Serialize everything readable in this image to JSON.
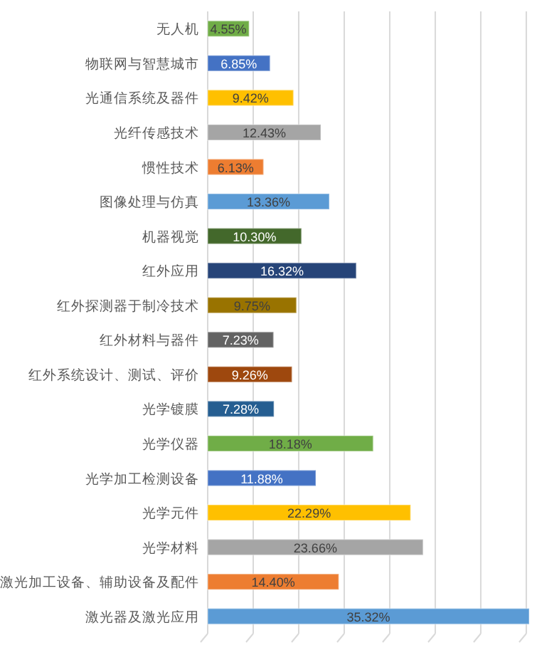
{
  "chart_data": {
    "type": "bar",
    "orientation": "horizontal",
    "categories": [
      "无人机",
      "物联网与智慧城市",
      "光通信系统及器件",
      "光纤传感技术",
      "惯性技术",
      "图像处理与仿真",
      "机器视觉",
      "红外应用",
      "红外探测器于制冷技术",
      "红外材料与器件",
      "红外系统设计、测试、评价",
      "光学镀膜",
      "光学仪器",
      "光学加工检测设备",
      "光学元件",
      "光学材料",
      "激光加工设备、辅助设备及配件",
      "激光器及激光应用"
    ],
    "values": [
      4.55,
      6.85,
      9.42,
      12.43,
      6.13,
      13.36,
      10.3,
      16.32,
      9.75,
      7.23,
      9.26,
      7.28,
      18.18,
      11.88,
      22.29,
      23.66,
      14.4,
      35.32
    ],
    "value_labels": [
      "4.55%",
      "6.85%",
      "9.42%",
      "12.43%",
      "6.13%",
      "13.36%",
      "10.30%",
      "16.32%",
      "9.75%",
      "7.23%",
      "9.26%",
      "7.28%",
      "18.18%",
      "11.88%",
      "22.29%",
      "23.66%",
      "14.40%",
      "35.32%"
    ],
    "colors": [
      "#70ad47",
      "#4472c4",
      "#ffc000",
      "#a5a5a5",
      "#ed7d31",
      "#5b9bd5",
      "#43682b",
      "#264478",
      "#997300",
      "#636363",
      "#9e480e",
      "#255e91",
      "#70ad47",
      "#4472c4",
      "#ffc000",
      "#a5a5a5",
      "#ed7d31",
      "#5b9bd5"
    ],
    "xticks": [
      {
        "value": 0,
        "label": null
      },
      {
        "value": 5,
        "label": null
      },
      {
        "value": 10,
        "label": null
      },
      {
        "value": 15,
        "label": null
      },
      {
        "value": 20,
        "label": null
      },
      {
        "value": 25,
        "label": null
      },
      {
        "value": 30,
        "label": null
      },
      {
        "value": 35,
        "label": null
      }
    ],
    "grid": "x",
    "tick_labels": "y"
  }
}
